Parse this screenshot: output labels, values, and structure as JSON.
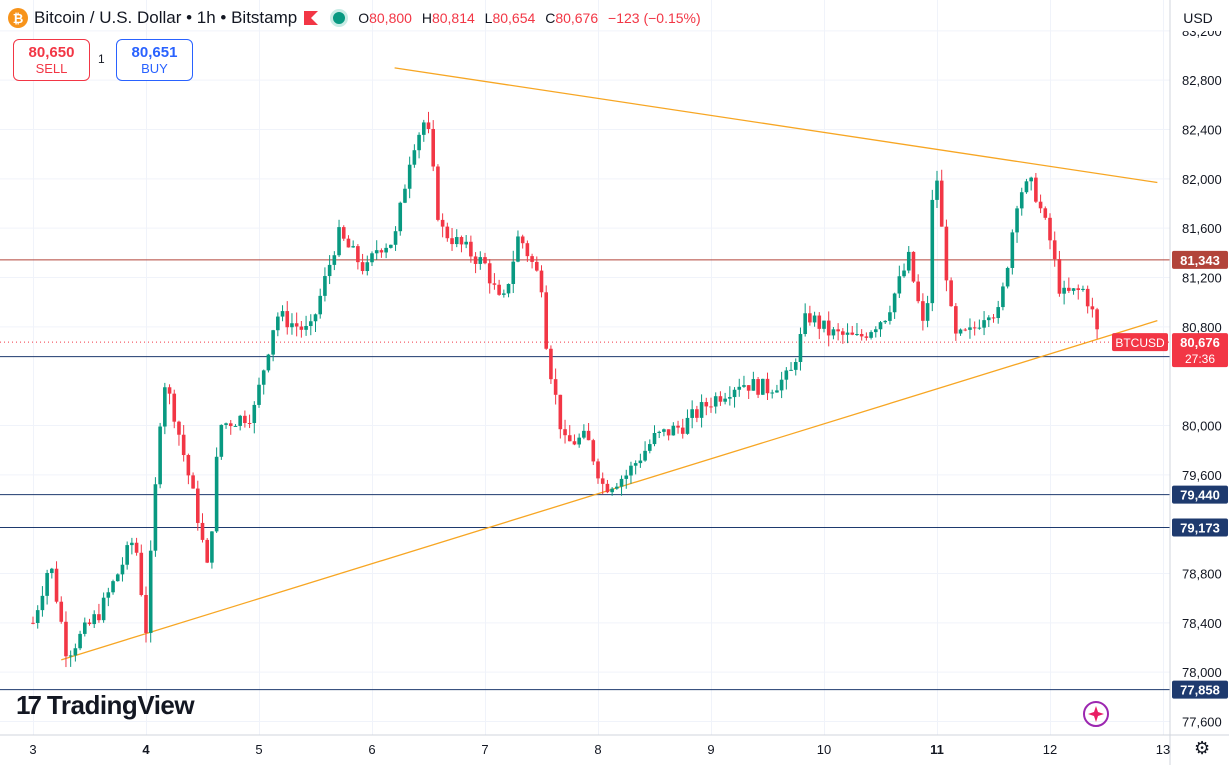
{
  "header": {
    "title": "Bitcoin / U.S. Dollar • 1h • Bitstamp",
    "ohlc": [
      {
        "k": "O",
        "v": "80,800"
      },
      {
        "k": "H",
        "v": "80,814"
      },
      {
        "k": "L",
        "v": "80,654"
      },
      {
        "k": "C",
        "v": "80,676"
      }
    ],
    "change": "−123 (−0.15%)",
    "icons": [
      "bitcoin-logo",
      "flag-icon",
      "market-status-icon"
    ]
  },
  "trade": {
    "sell_price": "80,650",
    "sell_label": "SELL",
    "spread": "1",
    "buy_price": "80,651",
    "buy_label": "BUY"
  },
  "currency": "USD",
  "brand": "TradingView",
  "colors": {
    "up": "#089981",
    "down": "#f23645",
    "trendline": "#f7a623",
    "support": "#1e3a6e",
    "resistance": "#b2443a"
  },
  "chart_data": {
    "type": "candlestick",
    "symbol": "BTCUSD",
    "ylim": [
      77450,
      83450
    ],
    "x_ticks": [
      {
        "label": "3",
        "day": 3
      },
      {
        "label": "4",
        "day": 4
      },
      {
        "label": "5",
        "day": 5
      },
      {
        "label": "6",
        "day": 6
      },
      {
        "label": "7",
        "day": 7
      },
      {
        "label": "8",
        "day": 8
      },
      {
        "label": "9",
        "day": 9
      },
      {
        "label": "10",
        "day": 10
      },
      {
        "label": "11",
        "day": 11
      },
      {
        "label": "12",
        "day": 12
      },
      {
        "label": "13",
        "day": 13
      }
    ],
    "y_ticks": [
      83200,
      82800,
      82400,
      82000,
      81600,
      81200,
      80800,
      80000,
      79600,
      78800,
      78400,
      78000,
      77600
    ],
    "y_tick_labels": [
      "83,200",
      "82,800",
      "82,400",
      "82,000",
      "81,600",
      "81,200",
      "80,800",
      "80,000",
      "79,600",
      "78,800",
      "78,400",
      "78,000",
      "77,600"
    ],
    "horizontal_lines": [
      {
        "value": 81343,
        "label": "81,343",
        "kind": "resistance"
      },
      {
        "value": 80558,
        "label": "80,558",
        "kind": "support"
      },
      {
        "value": 79440,
        "label": "79,440",
        "kind": "support"
      },
      {
        "value": 79173,
        "label": "79,173",
        "kind": "support"
      },
      {
        "value": 77858,
        "label": "77,858",
        "kind": "support"
      }
    ],
    "trendlines": [
      {
        "from": {
          "day": 6.2,
          "price": 82900
        },
        "to": {
          "day": 12.95,
          "price": 81970
        }
      },
      {
        "from": {
          "day": 3.25,
          "price": 78100
        },
        "to": {
          "day": 12.95,
          "price": 80850
        }
      }
    ],
    "last_price": {
      "symbol": "BTCUSD",
      "price": 80676,
      "label": "80,676",
      "countdown": "27:36"
    },
    "anchors": [
      {
        "day": 3.0,
        "price": 78400
      },
      {
        "day": 3.15,
        "price": 78900
      },
      {
        "day": 3.3,
        "price": 78150
      },
      {
        "day": 3.6,
        "price": 78500
      },
      {
        "day": 3.9,
        "price": 79100
      },
      {
        "day": 4.0,
        "price": 78350
      },
      {
        "day": 4.15,
        "price": 80400
      },
      {
        "day": 4.25,
        "price": 80100
      },
      {
        "day": 4.45,
        "price": 79300
      },
      {
        "day": 4.55,
        "price": 78800
      },
      {
        "day": 4.65,
        "price": 80000
      },
      {
        "day": 4.95,
        "price": 80100
      },
      {
        "day": 5.15,
        "price": 80900
      },
      {
        "day": 5.45,
        "price": 80750
      },
      {
        "day": 5.7,
        "price": 81550
      },
      {
        "day": 5.95,
        "price": 81250
      },
      {
        "day": 6.05,
        "price": 81450
      },
      {
        "day": 6.2,
        "price": 81500
      },
      {
        "day": 6.35,
        "price": 82250
      },
      {
        "day": 6.48,
        "price": 82500
      },
      {
        "day": 6.6,
        "price": 81600
      },
      {
        "day": 6.8,
        "price": 81450
      },
      {
        "day": 7.0,
        "price": 81300
      },
      {
        "day": 7.15,
        "price": 80950
      },
      {
        "day": 7.3,
        "price": 81550
      },
      {
        "day": 7.5,
        "price": 81150
      },
      {
        "day": 7.55,
        "price": 80600
      },
      {
        "day": 7.7,
        "price": 79850
      },
      {
        "day": 7.9,
        "price": 79900
      },
      {
        "day": 8.05,
        "price": 79500
      },
      {
        "day": 8.25,
        "price": 79600
      },
      {
        "day": 8.5,
        "price": 79900
      },
      {
        "day": 8.75,
        "price": 80000
      },
      {
        "day": 9.0,
        "price": 80200
      },
      {
        "day": 9.25,
        "price": 80350
      },
      {
        "day": 9.5,
        "price": 80300
      },
      {
        "day": 9.7,
        "price": 80400
      },
      {
        "day": 9.85,
        "price": 80900
      },
      {
        "day": 10.05,
        "price": 80750
      },
      {
        "day": 10.3,
        "price": 80700
      },
      {
        "day": 10.55,
        "price": 80900
      },
      {
        "day": 10.75,
        "price": 81350
      },
      {
        "day": 10.9,
        "price": 80700
      },
      {
        "day": 10.98,
        "price": 82200
      },
      {
        "day": 11.05,
        "price": 81500
      },
      {
        "day": 11.15,
        "price": 80700
      },
      {
        "day": 11.3,
        "price": 80750
      },
      {
        "day": 11.45,
        "price": 80950
      },
      {
        "day": 11.55,
        "price": 80900
      },
      {
        "day": 11.62,
        "price": 81300
      },
      {
        "day": 11.72,
        "price": 81900
      },
      {
        "day": 11.85,
        "price": 81950
      },
      {
        "day": 12.0,
        "price": 81500
      },
      {
        "day": 12.1,
        "price": 81050
      },
      {
        "day": 12.3,
        "price": 81100
      },
      {
        "day": 12.4,
        "price": 80850
      },
      {
        "day": 12.43,
        "price": 80676
      }
    ]
  }
}
